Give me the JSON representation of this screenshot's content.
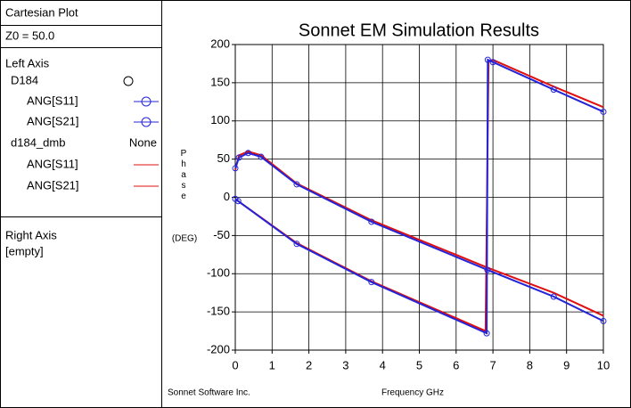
{
  "sidebar": {
    "panel_title": "Cartesian Plot",
    "z0": "Z0 = 50.0",
    "left_axis": "Left Axis",
    "files": [
      {
        "name": "D184",
        "style": ""
      },
      {
        "name": "d184_dmb",
        "style": "None"
      }
    ],
    "right_axis": "Right Axis",
    "right_axis_value": "[empty]"
  },
  "chart_data": {
    "type": "line",
    "title": "Sonnet EM Simulation Results",
    "x_label": "Frequency GHz",
    "y_label": "Phase",
    "y_unit": "(DEG)",
    "footer": "Sonnet Software Inc.",
    "xlim": [
      0,
      10
    ],
    "ylim": [
      -200,
      200
    ],
    "xticks": [
      0,
      1,
      2,
      3,
      4,
      5,
      6,
      7,
      8,
      9,
      10
    ],
    "yticks": [
      -200,
      -150,
      -100,
      -50,
      0,
      50,
      100,
      150,
      200
    ],
    "grid": true,
    "series": [
      {
        "name": "ANG[S11]",
        "color": "#2424d8",
        "markers": true,
        "x": [
          0,
          0.1,
          0.35,
          0.7,
          1.67,
          3.7,
          6.85,
          8.65,
          10
        ],
        "values": [
          38,
          52,
          58,
          53,
          17,
          -32,
          -95,
          -130,
          -162
        ]
      },
      {
        "name": "ANG[S21]",
        "color": "#2424d8",
        "markers": true,
        "x": [
          0,
          0.08,
          1.67,
          3.7,
          6.83,
          6.86,
          7.0,
          8.65,
          10
        ],
        "values": [
          -2,
          -5,
          -61,
          -111,
          -178,
          180,
          177,
          141,
          112
        ]
      },
      {
        "name": "ANG[S11]",
        "color": "#e01010",
        "markers": false,
        "x": [
          0,
          0.1,
          0.35,
          0.7,
          1.67,
          3.7,
          6.85,
          8.65,
          10
        ],
        "values": [
          36,
          55,
          60,
          55,
          18,
          -30,
          -92,
          -125,
          -155
        ]
      },
      {
        "name": "ANG[S21]",
        "color": "#e01010",
        "markers": false,
        "x": [
          0,
          0.08,
          1.67,
          3.7,
          6.8,
          6.88,
          7.0,
          8.65,
          10
        ],
        "values": [
          -2,
          -5,
          -60,
          -110,
          -175,
          178,
          180,
          145,
          118
        ]
      }
    ]
  }
}
